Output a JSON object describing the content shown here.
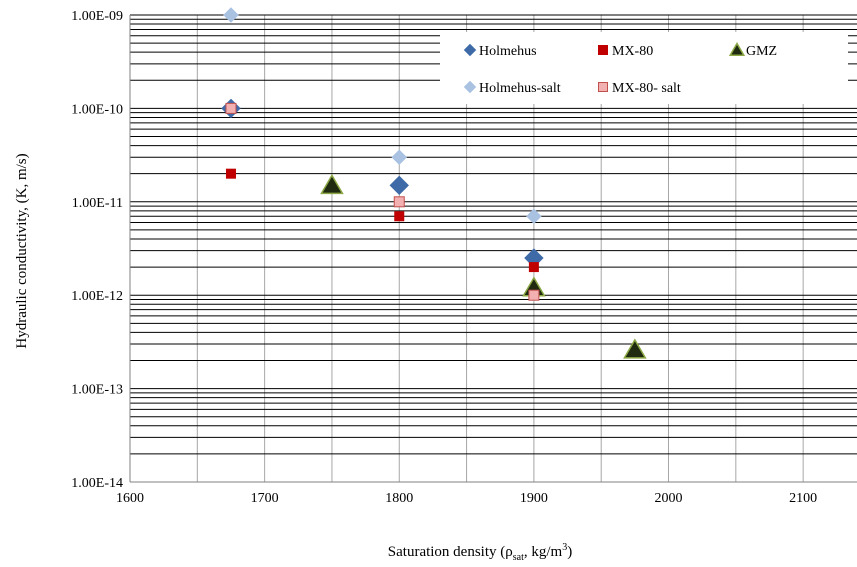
{
  "chart_data": {
    "type": "scatter",
    "xlabel": "Saturation density (ρsat, kg/m³)",
    "xlabel_parts": {
      "pre": "Saturation density (ρ",
      "sub": "sat",
      "mid": ", kg/m",
      "sup": "3",
      "post": ")"
    },
    "ylabel": "Hydraulic  conductivity,  (K, m/s)",
    "xlim": [
      1600,
      2140
    ],
    "ylim": [
      1e-14,
      1e-09
    ],
    "yscale": "log",
    "x_ticks": [
      "1600",
      "1700",
      "1800",
      "1900",
      "2000",
      "2100"
    ],
    "y_ticks": [
      "1.00E-09",
      "1.00E-10",
      "1.00E-11",
      "1.00E-12",
      "1.00E-13",
      "1.00E-14"
    ],
    "grid": true,
    "legend_position": "top-right",
    "series": [
      {
        "name": "Holmehus",
        "marker": "diamond",
        "color": "#3e6aa8",
        "points": [
          {
            "x": 1675,
            "y": 1e-10
          },
          {
            "x": 1800,
            "y": 1.5e-11
          },
          {
            "x": 1900,
            "y": 2.5e-12
          }
        ]
      },
      {
        "name": "MX-80",
        "marker": "square",
        "color": "#c00000",
        "points": [
          {
            "x": 1675,
            "y": 2e-11
          },
          {
            "x": 1800,
            "y": 7e-12
          },
          {
            "x": 1900,
            "y": 2e-12
          }
        ]
      },
      {
        "name": "GMZ",
        "marker": "triangle",
        "color": "#1f2a10",
        "edge": "#8ca845",
        "points": [
          {
            "x": 1750,
            "y": 1.5e-11
          },
          {
            "x": 1900,
            "y": 1.2e-12
          },
          {
            "x": 1975,
            "y": 2.6e-13
          }
        ]
      },
      {
        "name": "Holmehus-salt",
        "marker": "diamond",
        "color": "#a9c2e2",
        "points": [
          {
            "x": 1675,
            "y": 1e-09
          },
          {
            "x": 1800,
            "y": 3e-11
          },
          {
            "x": 1900,
            "y": 7e-12
          }
        ]
      },
      {
        "name": "MX-80- salt",
        "marker": "square",
        "color": "#f2b0b0",
        "edge": "#c0504d",
        "points": [
          {
            "x": 1675,
            "y": 1e-10
          },
          {
            "x": 1800,
            "y": 1e-11
          },
          {
            "x": 1900,
            "y": 1e-12
          }
        ]
      }
    ]
  }
}
